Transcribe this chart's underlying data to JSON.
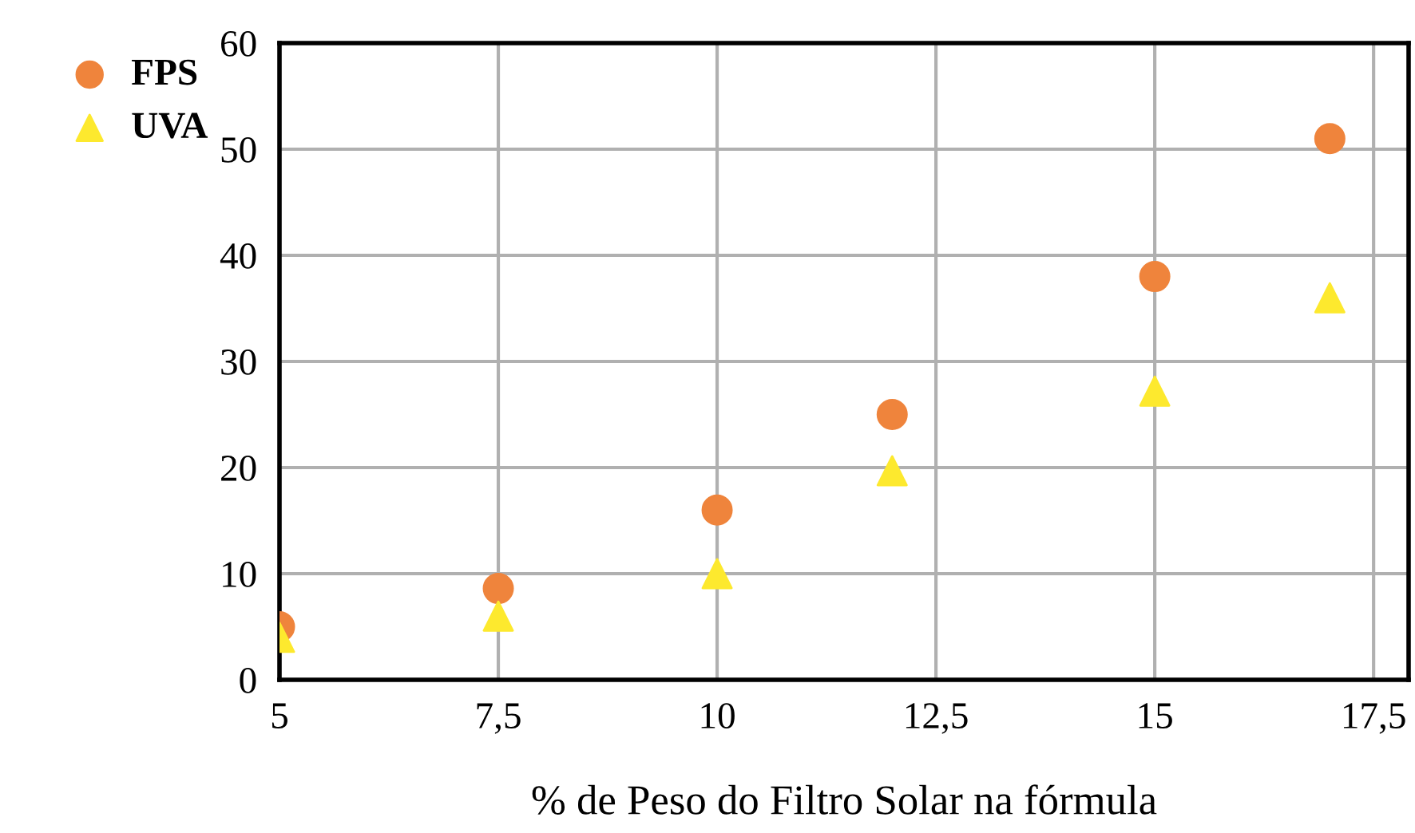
{
  "chart_data": {
    "type": "scatter",
    "xlabel": "% de Peso do Filtro Solar na fórmula",
    "xlim": [
      5,
      17.9
    ],
    "xticks": [
      5,
      {
        "value": 7.5,
        "label": "7,5"
      },
      10,
      {
        "value": 12.5,
        "label": "12,5"
      },
      15,
      {
        "value": 17.5,
        "label": "17,5"
      }
    ],
    "ylim": [
      0,
      60
    ],
    "yticks": [
      0,
      10,
      20,
      30,
      40,
      50,
      60
    ],
    "grid": true,
    "legend": "top left",
    "series": [
      {
        "name": "FPS",
        "color": "#ef843c",
        "marker": "circle",
        "x": [
          5,
          7.5,
          10,
          12,
          15,
          17
        ],
        "values": [
          5,
          8.6,
          16,
          25,
          38,
          51
        ]
      },
      {
        "name": "UVA",
        "color": "#fde92e",
        "marker": "triangle",
        "x": [
          5,
          7.5,
          10,
          12,
          15,
          17
        ],
        "values": [
          4,
          6,
          10,
          19.7,
          27.2,
          36
        ]
      }
    ]
  }
}
